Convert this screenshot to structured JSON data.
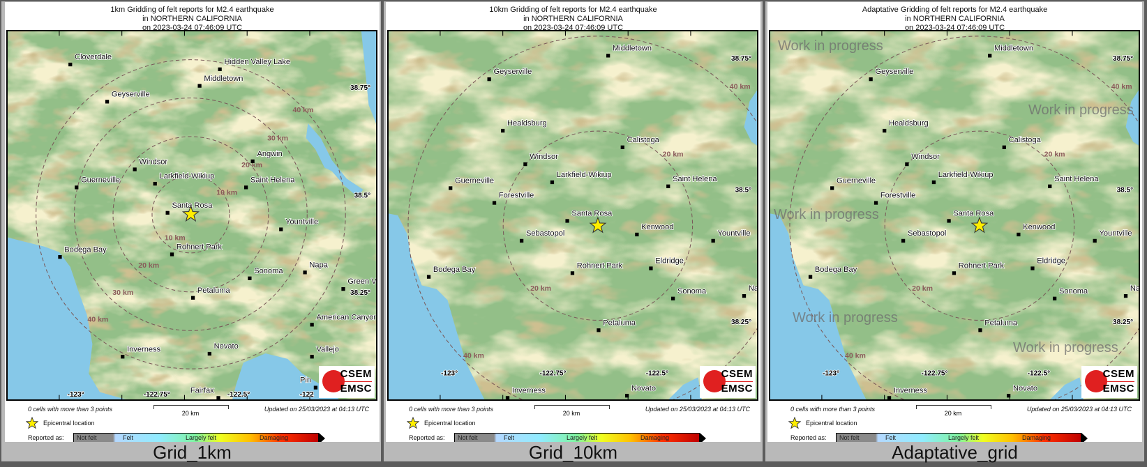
{
  "common": {
    "cells_note": "0 cells with more than 3 points",
    "scale_label": "20 km",
    "updated": "Updated on 25/03/2023 at 04:13 UTC",
    "epicenter_label": "Epicentral location",
    "reported_as": "Reported as:",
    "legend": [
      "Not felt",
      "Felt",
      "Largely felt",
      "Damaging"
    ],
    "logo_text": [
      "CSEM",
      "EMSC"
    ],
    "colors": {
      "land": "#93bf88",
      "water": "#86c8e8",
      "circle": "#7a5a5a",
      "star": "#ffee00"
    },
    "epicenter_icon": "star-icon"
  },
  "panels": [
    {
      "title_lines": [
        "1km Gridding of felt reports for M2.4 earthquake",
        "in NORTHERN CALIFORNIA",
        "on  2023-03-24 07:46:09 UTC"
      ],
      "caption": "Grid_1km",
      "towns": [
        "Cloverdale",
        "Hidden Valley Lake",
        "Middletown",
        "Geyserville",
        "Angwin",
        "Windsor",
        "Larkfield-Wikiup",
        "Saint Helena",
        "Guerneville",
        "Santa Rosa",
        "Yountville",
        "Bodega Bay",
        "Rohnert Park",
        "Sonoma",
        "Napa",
        "Green V",
        "Petaluma",
        "American Canyon",
        "Vallejo",
        "Inverness",
        "Novato",
        "Fairfax",
        "Pin"
      ],
      "distance_labels": [
        "40 km",
        "30 km",
        "20 km",
        "10 km",
        "10 km",
        "20 km",
        "30 km",
        "40 km"
      ],
      "lat_labels": [
        "38.75°",
        "38.5°",
        "38.25°"
      ],
      "lon_labels": [
        "-123°",
        "-122.75°",
        "-122.5°",
        "-122"
      ],
      "watermark": null
    },
    {
      "title_lines": [
        "10km Gridding of felt reports for M2.4 earthquake",
        "in NORTHERN CALIFORNIA",
        "on  2023-03-24 07:46:09 UTC"
      ],
      "caption": "Grid_10km",
      "towns": [
        "Middletown",
        "Geyserville",
        "Healdsburg",
        "Calistoga",
        "Windsor",
        "Larkfield-Wikiup",
        "Saint Helena",
        "Guerneville",
        "Forestville",
        "Santa Rosa",
        "Kenwood",
        "Yountville",
        "Sebastopol",
        "Eldridge",
        "Bodega Bay",
        "Rohnert Park",
        "Sonoma",
        "Na",
        "Petaluma",
        "Inverness",
        "Novato"
      ],
      "distance_labels": [
        "20 km",
        "20 km",
        "40 km",
        "40 km"
      ],
      "lat_labels": [
        "38.75°",
        "38.5°",
        "38.25°"
      ],
      "lon_labels": [
        "-123°",
        "-122.75°",
        "-122.5°"
      ],
      "watermark": null
    },
    {
      "title_lines": [
        "Adaptative Gridding of felt reports for M2.4 earthquake",
        "in NORTHERN CALIFORNIA",
        "on  2023-03-24 07:46:09 UTC"
      ],
      "caption": "Adaptative_grid",
      "towns": [
        "Middletown",
        "Geyserville",
        "Healdsburg",
        "Calistoga",
        "Windsor",
        "Larkfield-Wikiup",
        "Saint Helena",
        "Guerneville",
        "Forestville",
        "Santa Rosa",
        "Kenwood",
        "Yountville",
        "Sebastopol",
        "Eldridge",
        "Bodega Bay",
        "Rohnert Park",
        "Sonoma",
        "Na",
        "Petaluma",
        "Inverness",
        "Novato"
      ],
      "distance_labels": [
        "20 km",
        "20 km",
        "40 km",
        "40 km"
      ],
      "lat_labels": [
        "38.75°",
        "38.5°",
        "38.25°"
      ],
      "lon_labels": [
        "-123°",
        "-122.75°",
        "-122.5°"
      ],
      "watermark": "Work in progress"
    }
  ]
}
